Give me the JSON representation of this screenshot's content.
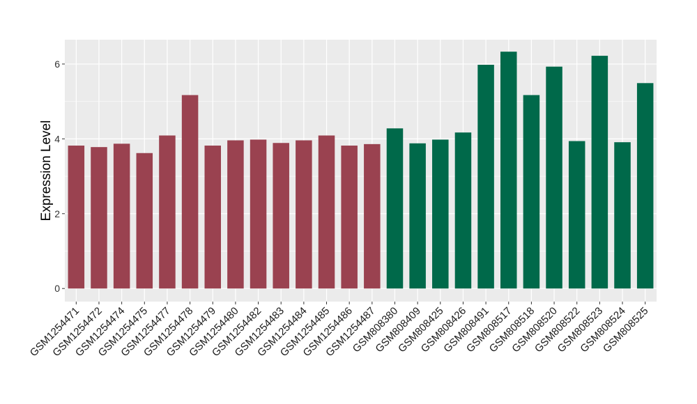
{
  "chart_data": {
    "type": "bar",
    "title": "",
    "xlabel": "",
    "ylabel": "Expression Level",
    "ylim": [
      -0.35,
      6.65
    ],
    "yticks": [
      0,
      2,
      4,
      6
    ],
    "grid": true,
    "categories": [
      "GSM1254471",
      "GSM1254472",
      "GSM1254474",
      "GSM1254475",
      "GSM1254477",
      "GSM1254478",
      "GSM1254479",
      "GSM1254480",
      "GSM1254482",
      "GSM1254483",
      "GSM1254484",
      "GSM1254485",
      "GSM1254486",
      "GSM1254487",
      "GSM808380",
      "GSM808409",
      "GSM808425",
      "GSM808426",
      "GSM808491",
      "GSM808517",
      "GSM808518",
      "GSM808520",
      "GSM808522",
      "GSM808523",
      "GSM808524",
      "GSM808525"
    ],
    "values": [
      3.82,
      3.78,
      3.87,
      3.62,
      4.09,
      5.17,
      3.82,
      3.96,
      3.98,
      3.89,
      3.96,
      4.09,
      3.82,
      3.86,
      4.28,
      3.88,
      3.98,
      4.17,
      5.98,
      6.33,
      5.17,
      5.93,
      3.94,
      6.22,
      3.91,
      5.49
    ],
    "groups": [
      "group1",
      "group1",
      "group1",
      "group1",
      "group1",
      "group1",
      "group1",
      "group1",
      "group1",
      "group1",
      "group1",
      "group1",
      "group1",
      "group1",
      "group2",
      "group2",
      "group2",
      "group2",
      "group2",
      "group2",
      "group2",
      "group2",
      "group2",
      "group2",
      "group2",
      "group2"
    ],
    "colors": {
      "group1": "#9a4250",
      "group2": "#00694a"
    },
    "panel_background": "#ebebeb",
    "gridline_color": "#ffffff"
  }
}
